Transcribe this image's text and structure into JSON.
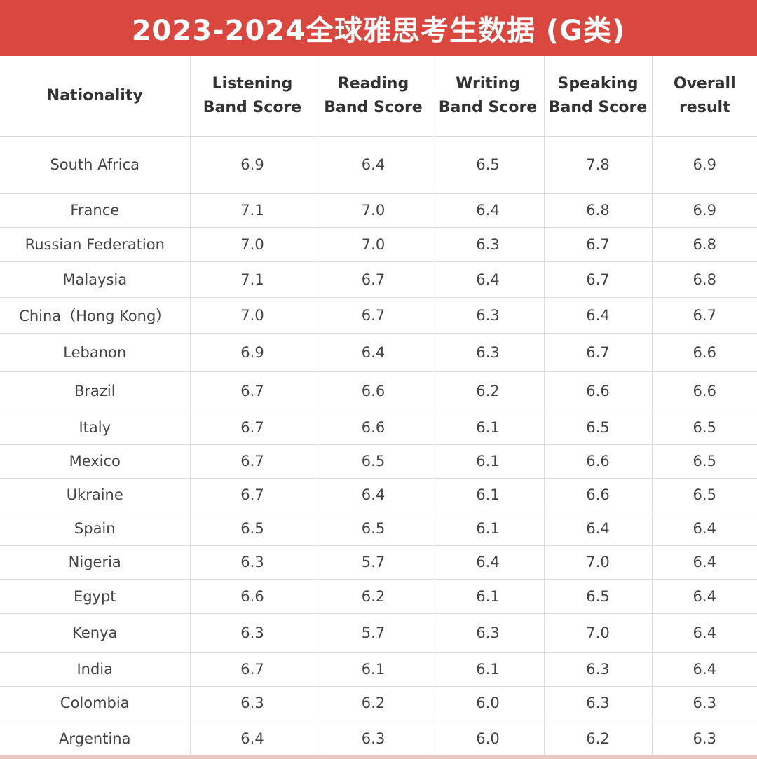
{
  "title": "2023-2024全球雅思考生数据 (G类)",
  "colors": {
    "banner": "#d9473f",
    "banner_text": "#ffffff",
    "grid": "#dcdcdc"
  },
  "table": {
    "headers": [
      "Nationality",
      "Listening Band Score",
      "Reading Band Score",
      "Writing Band Score",
      "Speaking Band Score",
      "Overall result"
    ],
    "rows": [
      [
        "South Africa",
        "6.9",
        "6.4",
        "6.5",
        "7.8",
        "6.9"
      ],
      [
        "France",
        "7.1",
        "7.0",
        "6.4",
        "6.8",
        "6.9"
      ],
      [
        "Russian Federation",
        "7.0",
        "7.0",
        "6.3",
        "6.7",
        "6.8"
      ],
      [
        "Malaysia",
        "7.1",
        "6.7",
        "6.4",
        "6.7",
        "6.8"
      ],
      [
        "China（Hong Kong）",
        "7.0",
        "6.7",
        "6.3",
        "6.4",
        "6.7"
      ],
      [
        "Lebanon",
        "6.9",
        "6.4",
        "6.3",
        "6.7",
        "6.6"
      ],
      [
        "Brazil",
        "6.7",
        "6.6",
        "6.2",
        "6.6",
        "6.6"
      ],
      [
        "Italy",
        "6.7",
        "6.6",
        "6.1",
        "6.5",
        "6.5"
      ],
      [
        "Mexico",
        "6.7",
        "6.5",
        "6.1",
        "6.6",
        "6.5"
      ],
      [
        "Ukraine",
        "6.7",
        "6.4",
        "6.1",
        "6.6",
        "6.5"
      ],
      [
        "Spain",
        "6.5",
        "6.5",
        "6.1",
        "6.4",
        "6.4"
      ],
      [
        "Nigeria",
        "6.3",
        "5.7",
        "6.4",
        "7.0",
        "6.4"
      ],
      [
        "Egypt",
        "6.6",
        "6.2",
        "6.1",
        "6.5",
        "6.4"
      ],
      [
        "Kenya",
        "6.3",
        "5.7",
        "6.3",
        "7.0",
        "6.4"
      ],
      [
        "India",
        "6.7",
        "6.1",
        "6.1",
        "6.3",
        "6.4"
      ],
      [
        "Colombia",
        "6.3",
        "6.2",
        "6.0",
        "6.3",
        "6.3"
      ],
      [
        "Argentina",
        "6.4",
        "6.3",
        "6.0",
        "6.2",
        "6.3"
      ]
    ]
  }
}
